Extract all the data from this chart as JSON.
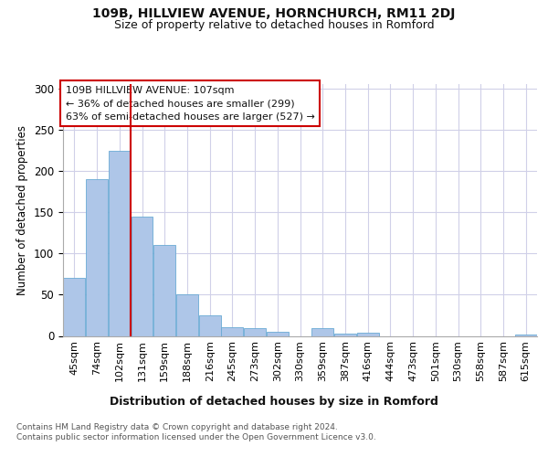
{
  "title1": "109B, HILLVIEW AVENUE, HORNCHURCH, RM11 2DJ",
  "title2": "Size of property relative to detached houses in Romford",
  "xlabel": "Distribution of detached houses by size in Romford",
  "ylabel": "Number of detached properties",
  "footer1": "Contains HM Land Registry data © Crown copyright and database right 2024.",
  "footer2": "Contains public sector information licensed under the Open Government Licence v3.0.",
  "annotation_line1": "109B HILLVIEW AVENUE: 107sqm",
  "annotation_line2": "← 36% of detached houses are smaller (299)",
  "annotation_line3": "63% of semi-detached houses are larger (527) →",
  "bin_labels": [
    "45sqm",
    "74sqm",
    "102sqm",
    "131sqm",
    "159sqm",
    "188sqm",
    "216sqm",
    "245sqm",
    "273sqm",
    "302sqm",
    "330sqm",
    "359sqm",
    "387sqm",
    "416sqm",
    "444sqm",
    "473sqm",
    "501sqm",
    "530sqm",
    "558sqm",
    "587sqm",
    "615sqm"
  ],
  "bar_heights": [
    70,
    190,
    225,
    145,
    110,
    50,
    25,
    10,
    9,
    5,
    0,
    9,
    3,
    4,
    0,
    0,
    0,
    0,
    0,
    0,
    2
  ],
  "bar_color": "#aec6e8",
  "bar_edge_color": "#6aaad4",
  "vline_x_index": 2.5,
  "vline_color": "#cc0000",
  "annotation_box_color": "#ffffff",
  "annotation_box_edge": "#cc0000",
  "ylim": [
    0,
    305
  ],
  "yticks": [
    0,
    50,
    100,
    150,
    200,
    250,
    300
  ],
  "background_color": "#ffffff",
  "grid_color": "#d0d0e8"
}
